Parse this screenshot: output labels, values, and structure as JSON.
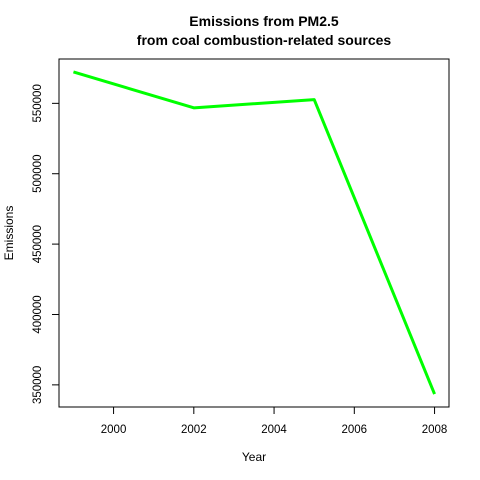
{
  "chart_data": {
    "type": "line",
    "title_line1": "Emissions from PM2.5",
    "title_line2": "from coal combustion-related sources",
    "xlabel": "Year",
    "ylabel": "Emissions",
    "x": [
      1999,
      2002,
      2005,
      2008
    ],
    "series": [
      {
        "values": [
          572346,
          546789,
          552675,
          343432
        ]
      }
    ],
    "xlim": [
      1999,
      2008
    ],
    "ylim": [
      343432,
      572346
    ],
    "xticks": [
      2000,
      2002,
      2004,
      2006,
      2008
    ],
    "yticks": [
      350000,
      400000,
      450000,
      500000,
      550000
    ],
    "xtick_labels": [
      "2000",
      "2002",
      "2004",
      "2006",
      "2008"
    ],
    "ytick_labels": [
      "350000",
      "400000",
      "450000",
      "500000",
      "550000"
    ],
    "line_color": "#00ff00",
    "grid": false,
    "legend": "none"
  }
}
